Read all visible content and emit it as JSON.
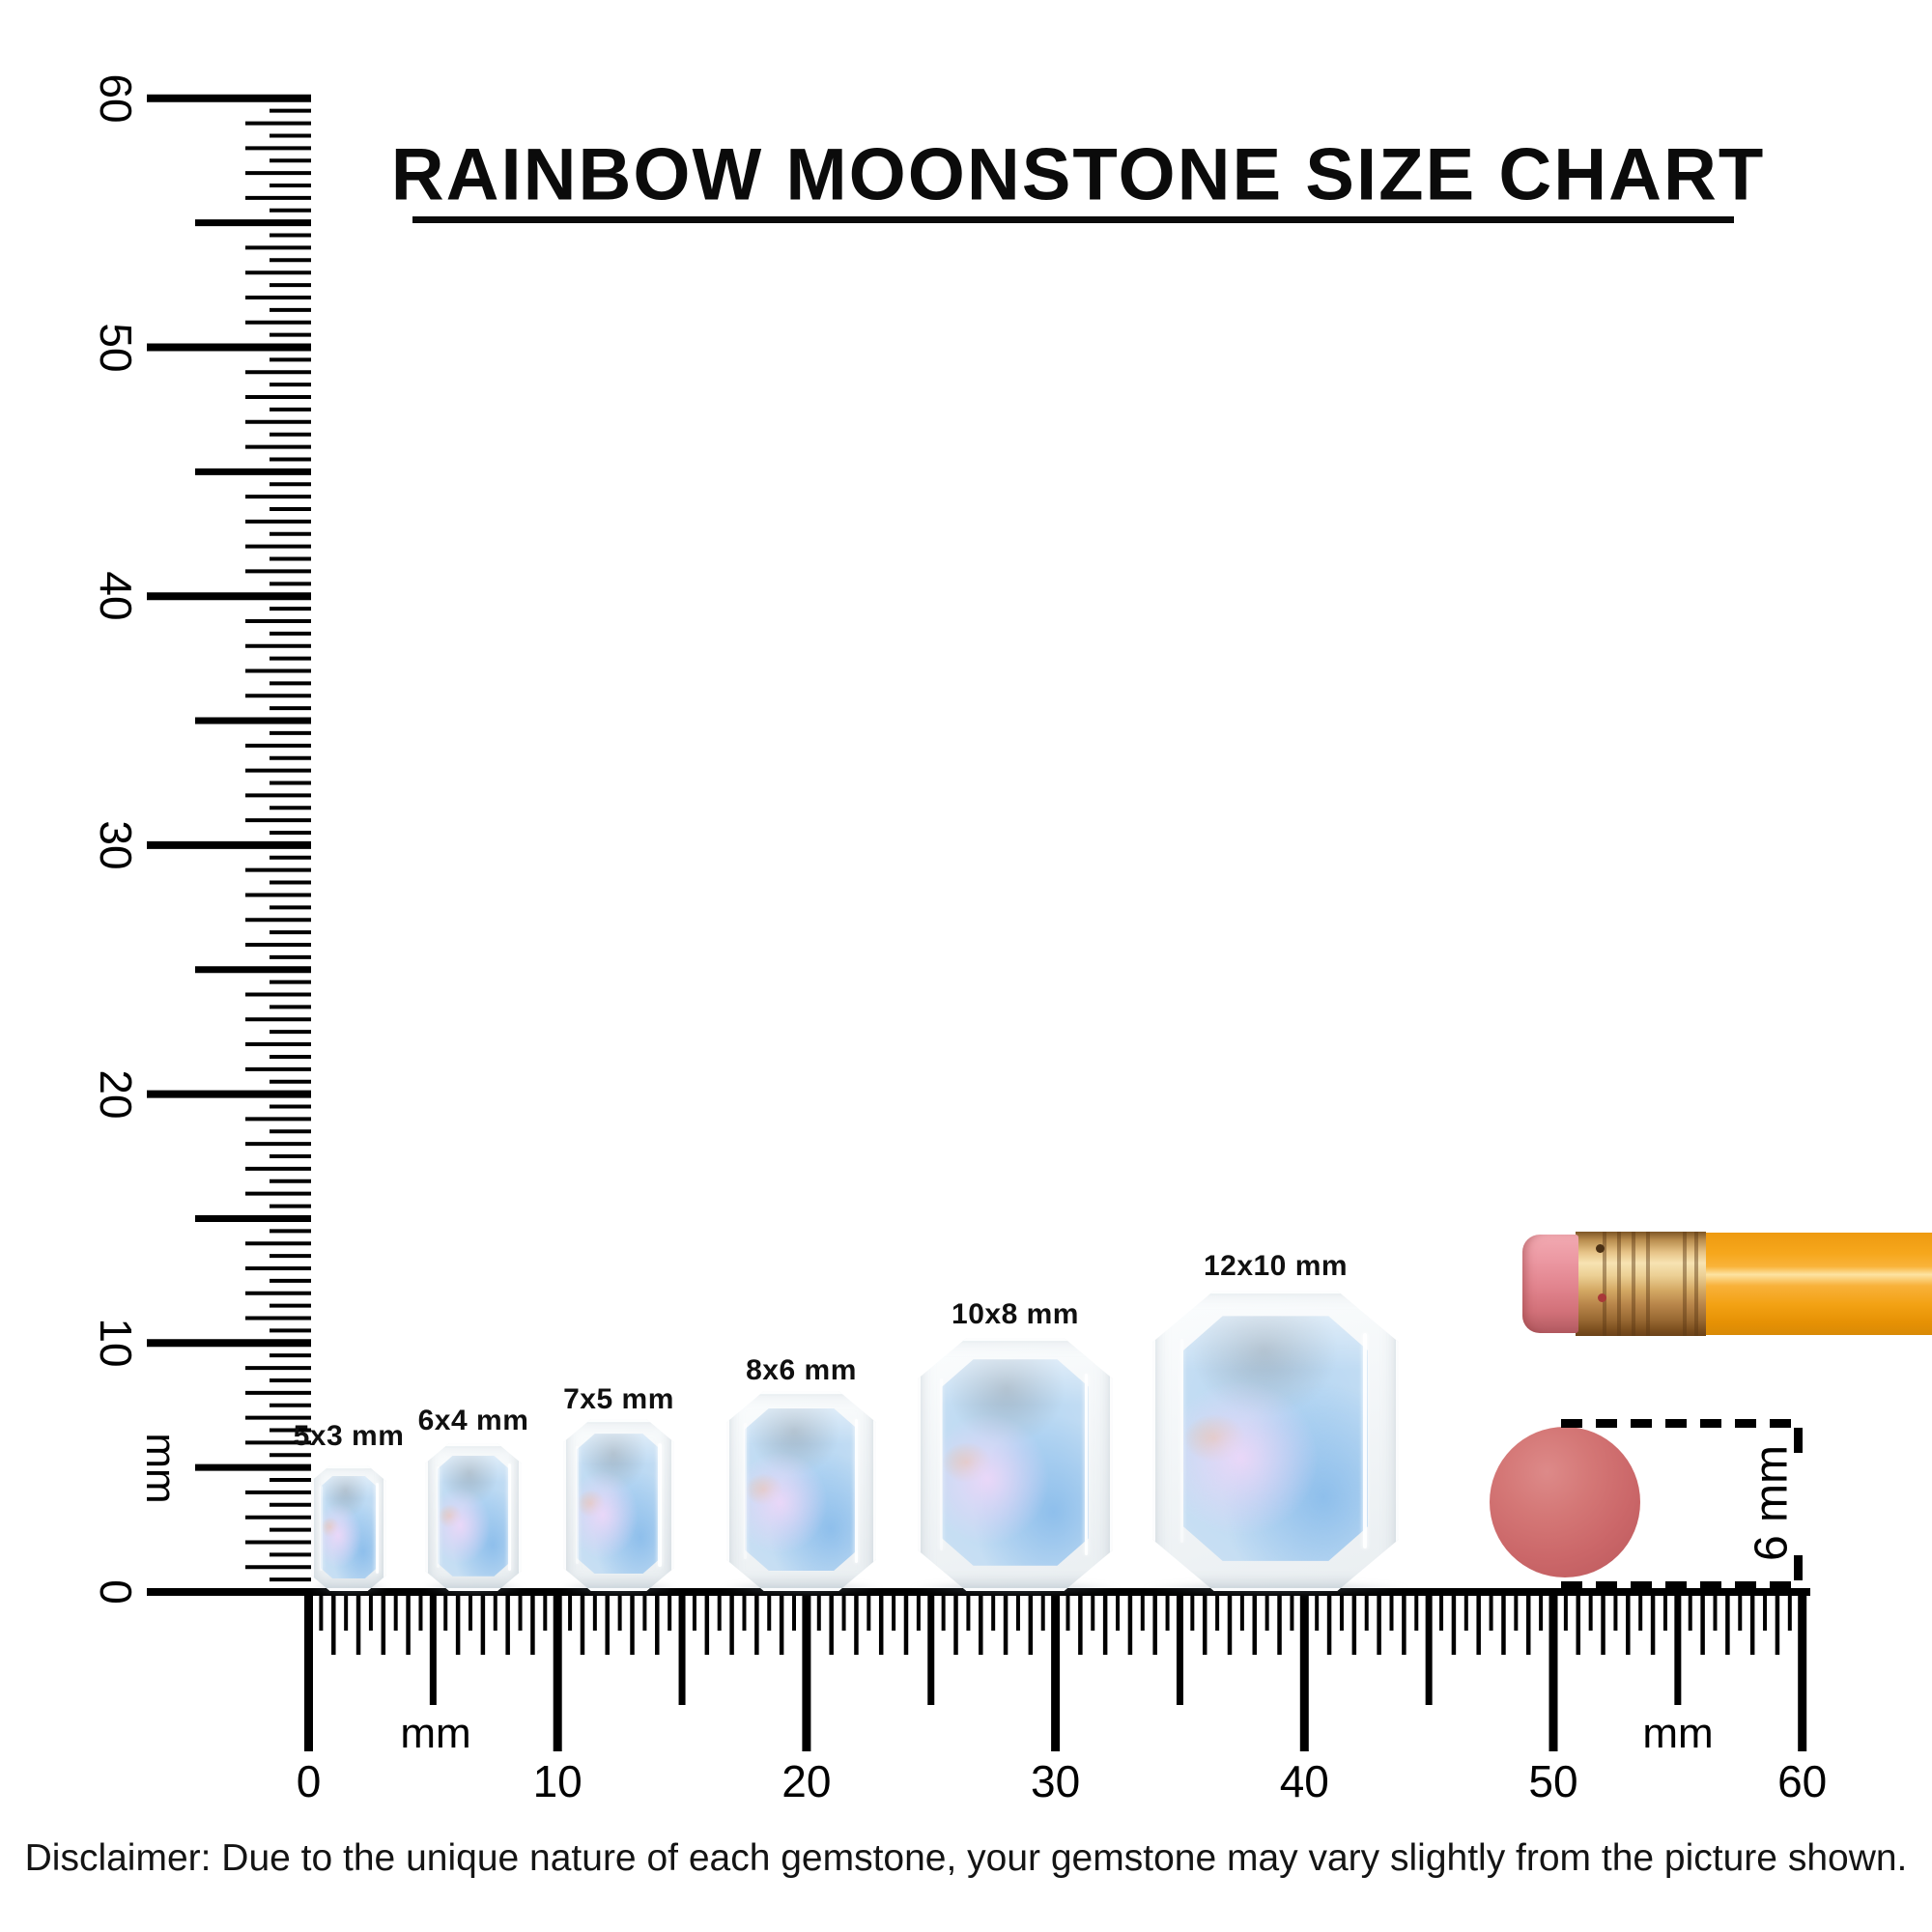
{
  "title": {
    "text": "RAINBOW MOONSTONE SIZE CHART"
  },
  "rulers": {
    "unit": "mm",
    "vertical_numbers": [
      "0",
      "10",
      "20",
      "30",
      "40",
      "50",
      "60"
    ],
    "horizontal_numbers": [
      "0",
      "10",
      "20",
      "30",
      "40",
      "50",
      "60"
    ]
  },
  "gems": [
    {
      "label": "5x3 mm"
    },
    {
      "label": "6x4 mm"
    },
    {
      "label": "7x5 mm"
    },
    {
      "label": "8x6 mm"
    },
    {
      "label": "10x8 mm"
    },
    {
      "label": "12x10 mm"
    }
  ],
  "measure": {
    "label": "6 mm"
  },
  "disclaimer": "Disclaimer: Due to the unique nature of each gemstone, your gemstone may vary slightly from the picture shown.",
  "colors": {
    "ink": "#000000",
    "eraser_dot": "#cb6769",
    "pencil_body": "#f6a71c",
    "pencil_ferrule": "#d4a964",
    "pencil_eraser": "#e2858f",
    "gem_blue": "#c8dff3",
    "gem_lavender": "#e9d7f6"
  }
}
